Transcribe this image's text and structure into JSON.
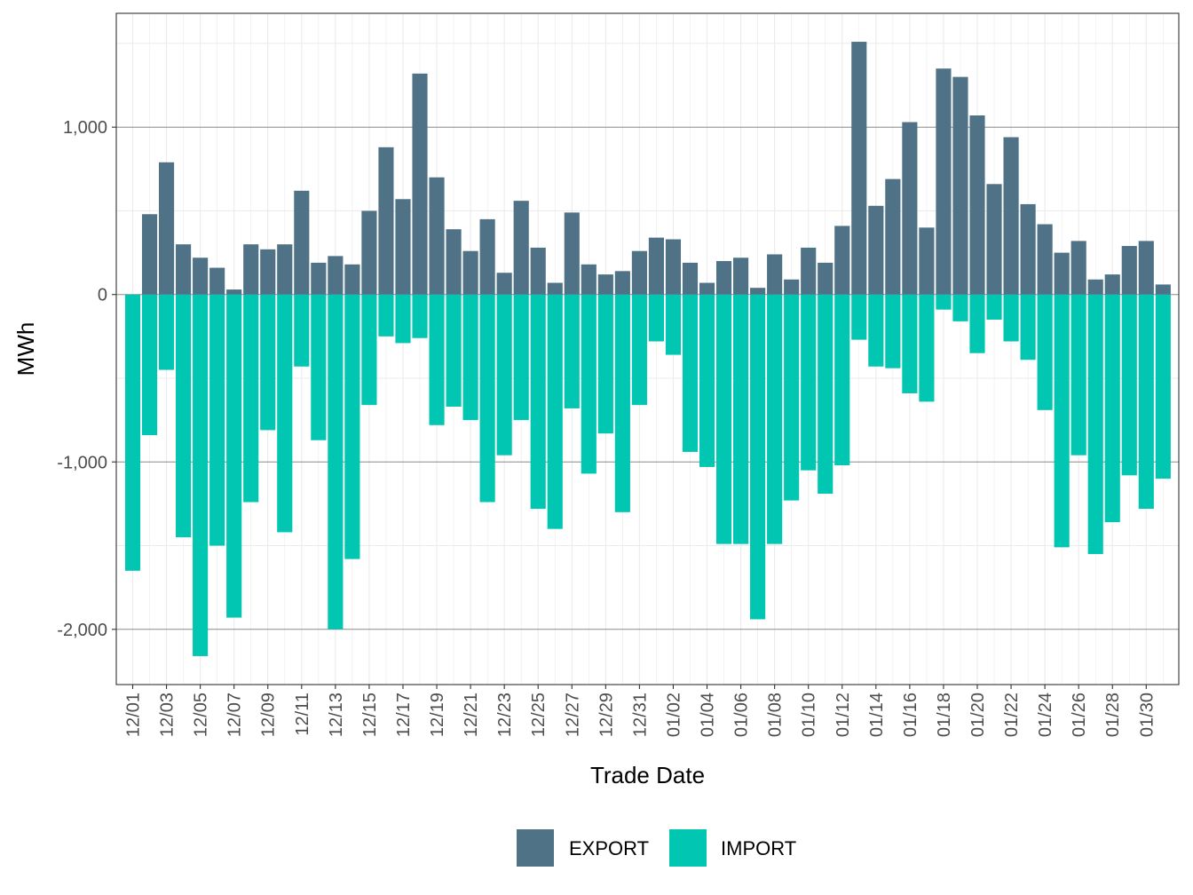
{
  "chart_data": {
    "type": "bar",
    "stacking": "diverging",
    "xlabel": "Trade Date",
    "ylabel": "MWh",
    "ylim": [
      -2330,
      1680
    ],
    "yticks": [
      -2000,
      -1000,
      0,
      1000
    ],
    "ytick_labels": [
      "-2,000",
      "-1,000",
      "0",
      "1,000"
    ],
    "grid": true,
    "legend_position": "bottom",
    "categories": [
      "12/01",
      "12/02",
      "12/03",
      "12/04",
      "12/05",
      "12/06",
      "12/07",
      "12/08",
      "12/09",
      "12/10",
      "12/11",
      "12/12",
      "12/13",
      "12/14",
      "12/15",
      "12/16",
      "12/17",
      "12/18",
      "12/19",
      "12/20",
      "12/21",
      "12/22",
      "12/23",
      "12/24",
      "12/25",
      "12/26",
      "12/27",
      "12/28",
      "12/29",
      "12/30",
      "12/31",
      "01/01",
      "01/02",
      "01/03",
      "01/04",
      "01/05",
      "01/06",
      "01/07",
      "01/08",
      "01/09",
      "01/10",
      "01/11",
      "01/12",
      "01/13",
      "01/14",
      "01/15",
      "01/16",
      "01/17",
      "01/18",
      "01/19",
      "01/20",
      "01/21",
      "01/22",
      "01/23",
      "01/24",
      "01/25",
      "01/26",
      "01/27",
      "01/28",
      "01/29",
      "01/30",
      "01/31"
    ],
    "xtick_labels": [
      "12/01",
      "12/03",
      "12/05",
      "12/07",
      "12/09",
      "12/11",
      "12/13",
      "12/15",
      "12/17",
      "12/19",
      "12/21",
      "12/23",
      "12/25",
      "12/27",
      "12/29",
      "12/31",
      "01/02",
      "01/04",
      "01/06",
      "01/08",
      "01/10",
      "01/12",
      "01/14",
      "01/16",
      "01/18",
      "01/20",
      "01/22",
      "01/24",
      "01/26",
      "01/28",
      "01/30"
    ],
    "series": [
      {
        "name": "EXPORT",
        "color": "#4f7286",
        "values": [
          0,
          480,
          790,
          300,
          220,
          160,
          30,
          300,
          270,
          300,
          620,
          190,
          230,
          180,
          500,
          880,
          570,
          1320,
          700,
          390,
          260,
          450,
          130,
          560,
          280,
          70,
          490,
          180,
          120,
          140,
          260,
          340,
          330,
          190,
          70,
          200,
          220,
          40,
          240,
          90,
          280,
          190,
          410,
          1510,
          530,
          690,
          1030,
          400,
          1350,
          1300,
          1070,
          660,
          940,
          540,
          420,
          250,
          320,
          90,
          120,
          290,
          320,
          60
        ]
      },
      {
        "name": "IMPORT",
        "color": "#00c6b2",
        "values": [
          -1650,
          -840,
          -450,
          -1450,
          -2160,
          -1500,
          -1930,
          -1240,
          -810,
          -1420,
          -430,
          -870,
          -2000,
          -1580,
          -660,
          -250,
          -290,
          -260,
          -780,
          -670,
          -750,
          -1240,
          -960,
          -750,
          -1280,
          -1400,
          -680,
          -1070,
          -830,
          -1300,
          -660,
          -280,
          -360,
          -940,
          -1030,
          -1490,
          -1490,
          -1940,
          -1490,
          -1230,
          -1050,
          -1190,
          -1020,
          -270,
          -430,
          -440,
          -590,
          -640,
          -90,
          -160,
          -350,
          -150,
          -280,
          -390,
          -690,
          -1510,
          -960,
          -1550,
          -1360,
          -1080,
          -1280,
          -1100
        ]
      }
    ]
  }
}
